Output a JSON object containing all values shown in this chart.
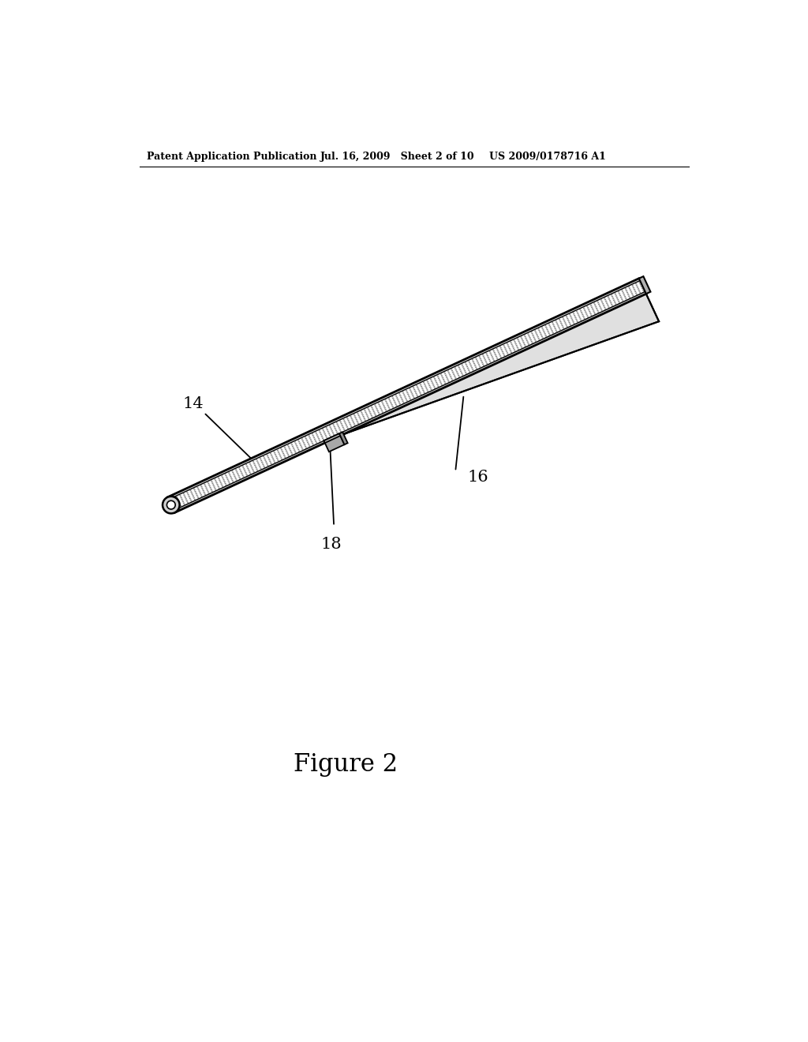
{
  "header_left": "Patent Application Publication",
  "header_mid": "Jul. 16, 2009   Sheet 2 of 10",
  "header_right": "US 2009/0178716 A1",
  "figure_caption": "Figure 2",
  "label_14": "14",
  "label_16": "16",
  "label_18": "18",
  "bg_color": "#ffffff",
  "line_color": "#000000"
}
